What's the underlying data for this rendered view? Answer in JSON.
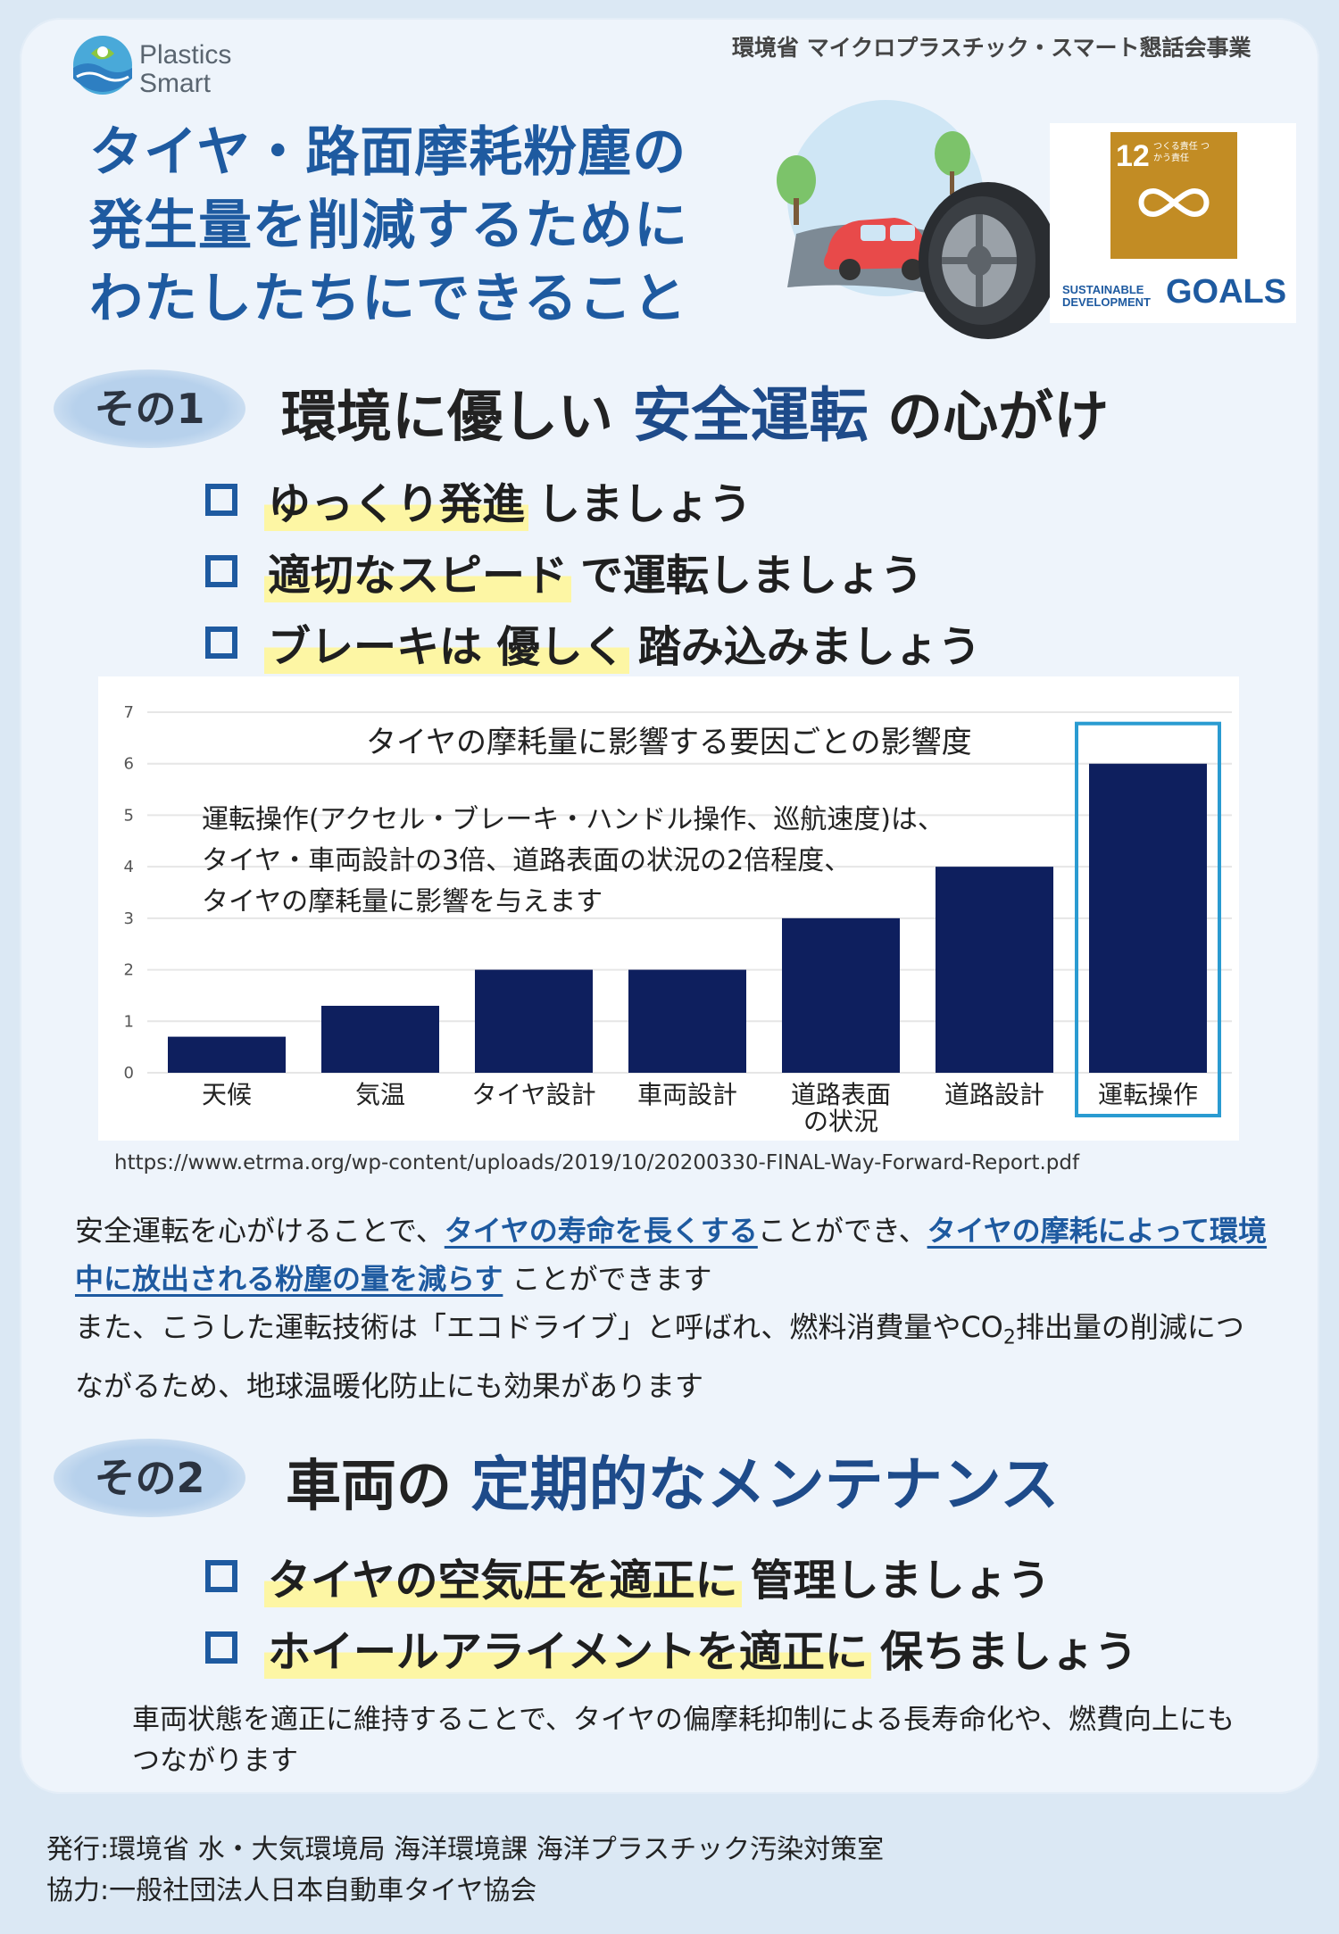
{
  "header": {
    "logo_line1": "Plastics",
    "logo_line2": "Smart",
    "publisher_top": "環境省 マイクロプラスチック・スマート懇話会事業",
    "title_lines": [
      "タイヤ・路面摩耗粉塵の",
      "発生量を削減するために",
      "わたしたちにできること"
    ]
  },
  "sdg": {
    "number": "12",
    "tile_text": "つくる責任 つかう責任",
    "label_line1": "SUSTAINABLE",
    "label_line2": "DEVELOPMENT",
    "goals": "GOALS",
    "tile_color": "#c28c24"
  },
  "section1": {
    "pill": "その1",
    "heading_pre": "環境に優しい ",
    "heading_hl": "安全運転",
    "heading_post": " の心がけ",
    "bullets": [
      {
        "mark": "ゆっくり発進",
        "rest": "しましょう"
      },
      {
        "mark": "適切なスピード",
        "rest": "で運転しましょう"
      },
      {
        "mark": "ブレーキは 優しく",
        "rest": "踏み込みましょう"
      }
    ]
  },
  "chart_data": {
    "type": "bar",
    "title": "タイヤの摩耗量に影響する要因ごとの影響度",
    "note": "運転操作(アクセル・ブレーキ・ハンドル操作、巡航速度)は、\nタイヤ・車両設計の3倍、道路表面の状況の2倍程度、\nタイヤの摩耗量に影響を与えます",
    "categories": [
      "天候",
      "気温",
      "タイヤ設計",
      "車両設計",
      "道路表面\nの状況",
      "道路設計",
      "運転操作"
    ],
    "values": [
      0.7,
      1.3,
      2,
      2,
      3,
      4,
      6
    ],
    "ylim": [
      0,
      7
    ],
    "yticks": [
      0,
      1,
      2,
      3,
      4,
      5,
      6,
      7
    ],
    "highlight_index": 6,
    "bar_color": "#0e1f5e",
    "highlight_color": "#2a9bd1",
    "grid": true
  },
  "source_url": "https://www.etrma.org/wp-content/uploads/2019/10/20200330-FINAL-Way-Forward-Report.pdf",
  "paragraph1": {
    "t1": "安全運転を心がけることで、",
    "l1": "タイヤの寿命を長くする",
    "t2": "ことができ、",
    "l2": "タイヤの摩耗によって環境中に放出される粉塵の量を減らす",
    "t3": " ことができます",
    "t4": "また、こうした運転技術は「エコドライブ」と呼ばれ、燃料消費量やCO",
    "sub": "2",
    "t5": "排出量の削減につながるため、地球温暖化防止にも効果があります"
  },
  "section2": {
    "pill": "その2",
    "heading_pre": "車両の ",
    "heading_hl": "定期的なメンテナンス",
    "bullets": [
      {
        "mark": "タイヤの空気圧を適正に",
        "rest": "管理しましょう"
      },
      {
        "mark": "ホイールアライメントを適正に",
        "rest": " 保ちましょう"
      }
    ],
    "paragraph": "車両状態を適正に維持することで、タイヤの偏摩耗抑制による長寿命化や、燃費向上にもつながります"
  },
  "footer": {
    "publisher": "発行:環境省 水・大気環境局 海洋環境課 海洋プラスチック汚染対策室",
    "cooperation": "協力:一般社団法人日本自動車タイヤ協会"
  }
}
